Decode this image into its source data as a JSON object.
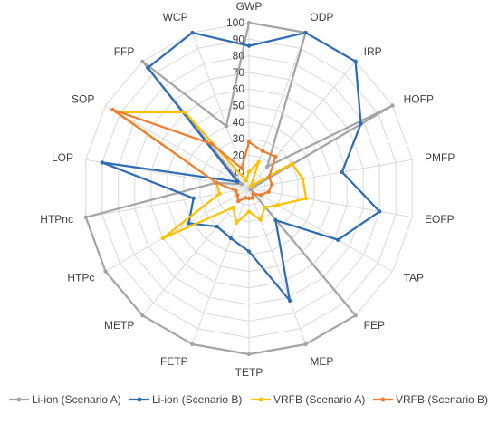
{
  "chart_data": {
    "type": "radar",
    "categories": [
      "GWP",
      "ODP",
      "IRP",
      "HOFP",
      "PMFP",
      "EOFP",
      "TAP",
      "FEP",
      "MEP",
      "TETP",
      "FETP",
      "METP",
      "HTPc",
      "HTPnc",
      "LOP",
      "SOP",
      "FFP",
      "WCP"
    ],
    "ticks": [
      10,
      20,
      30,
      40,
      50,
      60,
      70,
      80,
      90,
      100
    ],
    "tick_labels": [
      "10",
      "20",
      "30",
      "40",
      "50",
      "60",
      "70",
      "80",
      "90",
      "100"
    ],
    "rlim": [
      0,
      100
    ],
    "grid": true,
    "legend": "bottom",
    "series": [
      {
        "name": "Li-ion (Scenario A)",
        "color": "#A5A5A5",
        "values": [
          100,
          100,
          17,
          100,
          2,
          1,
          1,
          100,
          100,
          100,
          100,
          100,
          100,
          100,
          20,
          5,
          100,
          40
        ]
      },
      {
        "name": "Li-ion (Scenario B)",
        "color": "#2E6DB4",
        "values": [
          86,
          100,
          100,
          78,
          57,
          80,
          62,
          25,
          72,
          38,
          32,
          30,
          42,
          34,
          90,
          8,
          95,
          100
        ]
      },
      {
        "name": "VRFB (Scenario A)",
        "color": "#FFC000",
        "values": [
          10,
          17,
          2,
          30,
          33,
          35,
          20,
          15,
          20,
          14,
          22,
          15,
          60,
          18,
          20,
          92,
          60,
          5
        ]
      },
      {
        "name": "VRFB (Scenario B)",
        "color": "#ED7D31",
        "values": [
          28,
          24,
          25,
          14,
          14,
          12,
          8,
          4,
          6,
          6,
          6,
          10,
          8,
          8,
          20,
          95,
          35,
          13
        ]
      }
    ]
  }
}
